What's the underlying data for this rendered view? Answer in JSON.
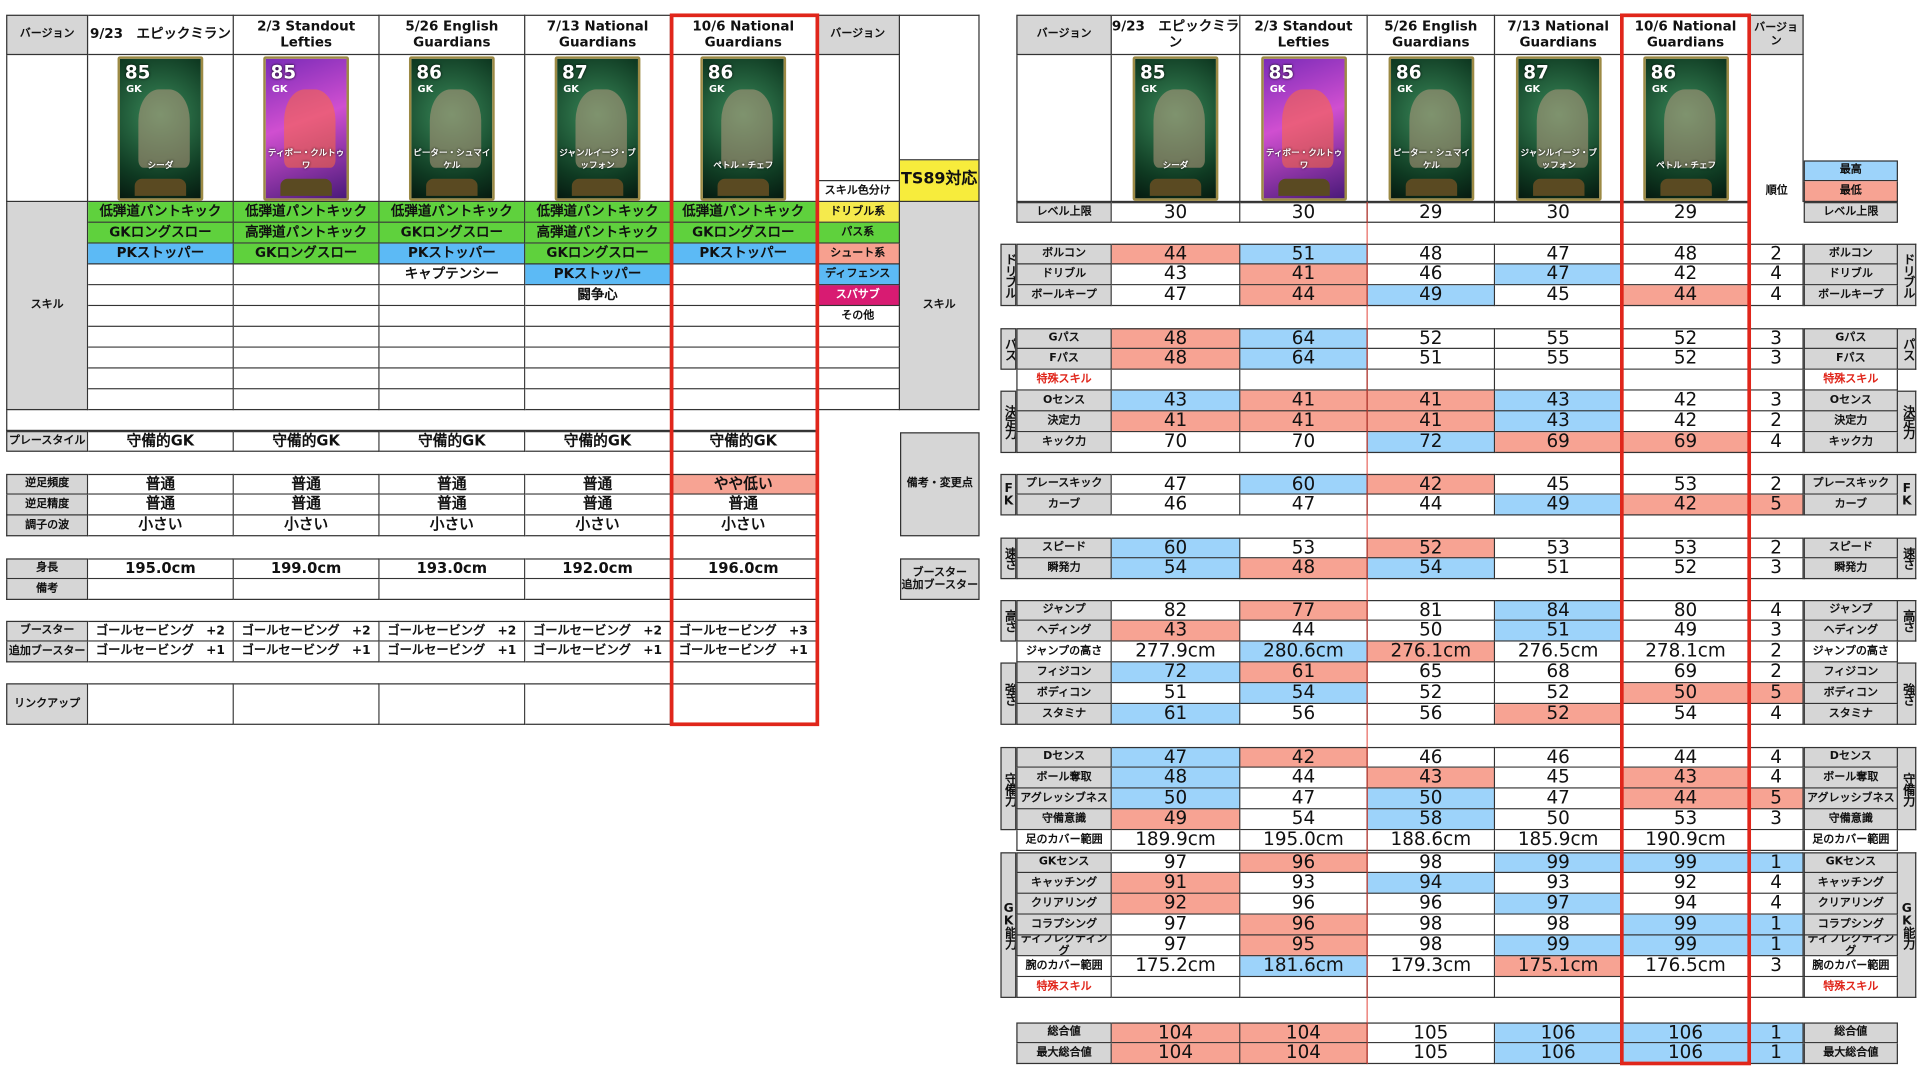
{
  "left": {
    "version_label": "バージョン",
    "version_label_right": "バージョン",
    "versions": [
      "9/23　エピックミラン",
      "2/3 Standout Lefties",
      "5/26 English Guardians",
      "7/13 National Guardians",
      "10/6 National Guardians"
    ],
    "cards": [
      {
        "rating": "85",
        "position": "GK",
        "name": "シーダ",
        "theme": "green"
      },
      {
        "rating": "85",
        "position": "GK",
        "name": "ティボー・クルトゥワ",
        "theme": "purple"
      },
      {
        "rating": "86",
        "position": "GK",
        "name": "ピーター・シュマイケル",
        "theme": "green"
      },
      {
        "rating": "87",
        "position": "GK",
        "name": "ジャンルイージ・ブッフォン",
        "theme": "green"
      },
      {
        "rating": "86",
        "position": "GK",
        "name": "ペトル・チェフ",
        "theme": "green"
      }
    ],
    "skills_label": "スキル",
    "skills_label_right": "スキル",
    "skills": [
      [
        {
          "name": "低弾道パントキック",
          "type": "pass"
        },
        {
          "name": "GKロングスロー",
          "type": "pass"
        },
        {
          "name": "PKストッパー",
          "type": "defense"
        }
      ],
      [
        {
          "name": "低弾道パントキック",
          "type": "pass"
        },
        {
          "name": "高弾道パントキック",
          "type": "pass"
        },
        {
          "name": "GKロングスロー",
          "type": "pass"
        }
      ],
      [
        {
          "name": "低弾道パントキック",
          "type": "pass"
        },
        {
          "name": "GKロングスロー",
          "type": "pass"
        },
        {
          "name": "PKストッパー",
          "type": "defense"
        },
        {
          "name": "キャプテンシー",
          "type": "other"
        }
      ],
      [
        {
          "name": "低弾道パントキック",
          "type": "pass"
        },
        {
          "name": "高弾道パントキック",
          "type": "pass"
        },
        {
          "name": "GKロングスロー",
          "type": "pass"
        },
        {
          "name": "PKストッパー",
          "type": "defense"
        },
        {
          "name": "闘争心",
          "type": "other"
        }
      ],
      [
        {
          "name": "低弾道パントキック",
          "type": "pass"
        },
        {
          "name": "GKロングスロー",
          "type": "pass"
        },
        {
          "name": "PKストッパー",
          "type": "defense"
        }
      ]
    ],
    "skill_legend_title": "スキル色分け",
    "skill_legend": [
      {
        "label": "ドリブル系",
        "type": "dribble",
        "color": "#f5ea4c"
      },
      {
        "label": "パス系",
        "type": "pass",
        "color": "#5fd13d"
      },
      {
        "label": "シュート系",
        "type": "shoot",
        "color": "#f7a08f"
      },
      {
        "label": "ディフェンス",
        "type": "defense",
        "color": "#5cbaf5"
      },
      {
        "label": "スパサブ",
        "type": "supersub",
        "color": "#d81b72"
      },
      {
        "label": "その他",
        "type": "other",
        "color": "#ffffff"
      }
    ],
    "ts89": "TS89対応",
    "remarks_label": "備考・変更点",
    "booster_label_right": "ブースター\n追加ブースター",
    "rows": [
      {
        "label": "プレースタイル",
        "values": [
          "守備的GK",
          "守備的GK",
          "守備的GK",
          "守備的GK",
          "守備的GK"
        ],
        "highlight": [
          "",
          "",
          "",
          "",
          ""
        ]
      },
      {
        "label": "逆足頻度",
        "values": [
          "普通",
          "普通",
          "普通",
          "普通",
          "やや低い"
        ],
        "highlight": [
          "",
          "",
          "",
          "",
          "lo"
        ]
      },
      {
        "label": "逆足精度",
        "values": [
          "普通",
          "普通",
          "普通",
          "普通",
          "普通"
        ],
        "highlight": [
          "",
          "",
          "",
          "",
          ""
        ]
      },
      {
        "label": "調子の波",
        "values": [
          "小さい",
          "小さい",
          "小さい",
          "小さい",
          "小さい"
        ],
        "highlight": [
          "",
          "",
          "",
          "",
          ""
        ]
      },
      {
        "label": "身長",
        "values": [
          "195.0cm",
          "199.0cm",
          "193.0cm",
          "192.0cm",
          "196.0cm"
        ],
        "highlight": [
          "",
          "",
          "",
          "",
          ""
        ]
      },
      {
        "label": "備考",
        "values": [
          "",
          "",
          "",
          "",
          ""
        ],
        "highlight": [
          "",
          "",
          "",
          "",
          ""
        ]
      },
      {
        "label": "ブースター",
        "values": [
          "ゴールセービング　+2",
          "ゴールセービング　+2",
          "ゴールセービング　+2",
          "ゴールセービング　+2",
          "ゴールセービング　+3"
        ],
        "highlight": [
          "",
          "",
          "",
          "",
          ""
        ]
      },
      {
        "label": "追加ブースター",
        "values": [
          "ゴールセービング　+1",
          "ゴールセービング　+1",
          "ゴールセービング　+1",
          "ゴールセービング　+1",
          "ゴールセービング　+1"
        ],
        "highlight": [
          "",
          "",
          "",
          "",
          ""
        ]
      },
      {
        "label": "リンクアップ",
        "values": [
          "",
          "",
          "",
          "",
          ""
        ],
        "highlight": [
          "",
          "",
          "",
          "",
          ""
        ]
      }
    ]
  },
  "stats": {
    "version_label": "バージョン",
    "rank_header": "バージョン",
    "versions": [
      "9/23　エピックミラン",
      "2/3 Standout Lefties",
      "5/26 English Guardians",
      "7/13 National Guardians",
      "10/6 National Guardians"
    ],
    "rank_label": "順位",
    "legend": [
      {
        "label": "最高",
        "color": "#9dd3fa"
      },
      {
        "label": "最低",
        "color": "#f7a393"
      }
    ],
    "colors": {
      "hi": "#9dd3fa",
      "lo": "#f7a393",
      "frame": "#e0261b"
    },
    "rows": [
      {
        "group": "",
        "kind": "normal",
        "label": "レベル上限",
        "values": [
          "30",
          "30",
          "29",
          "30",
          "29"
        ],
        "highlight": [
          "",
          "",
          "",
          "",
          ""
        ],
        "rank": "",
        "rank_hl": ""
      },
      {
        "group": "ドリブル",
        "kind": "normal",
        "label": "ボルコン",
        "values": [
          "44",
          "51",
          "48",
          "47",
          "48"
        ],
        "highlight": [
          "lo",
          "hi",
          "",
          "",
          ""
        ],
        "rank": "2",
        "rank_hl": ""
      },
      {
        "group": "ドリブル",
        "kind": "normal",
        "label": "ドリブル",
        "values": [
          "43",
          "41",
          "46",
          "47",
          "42"
        ],
        "highlight": [
          "",
          "lo",
          "",
          "hi",
          ""
        ],
        "rank": "4",
        "rank_hl": ""
      },
      {
        "group": "ドリブル",
        "kind": "normal",
        "label": "ボールキープ",
        "values": [
          "47",
          "44",
          "49",
          "45",
          "44"
        ],
        "highlight": [
          "",
          "lo",
          "hi",
          "",
          "lo"
        ],
        "rank": "4",
        "rank_hl": ""
      },
      {
        "group": "パス",
        "kind": "normal",
        "label": "Gパス",
        "values": [
          "48",
          "64",
          "52",
          "55",
          "52"
        ],
        "highlight": [
          "lo",
          "hi",
          "",
          "",
          ""
        ],
        "rank": "3",
        "rank_hl": ""
      },
      {
        "group": "パス",
        "kind": "normal",
        "label": "Fパス",
        "values": [
          "48",
          "64",
          "51",
          "55",
          "52"
        ],
        "highlight": [
          "lo",
          "hi",
          "",
          "",
          ""
        ],
        "rank": "3",
        "rank_hl": ""
      },
      {
        "group": "",
        "kind": "special",
        "label": "特殊スキル",
        "values": [
          "",
          "",
          "",
          "",
          ""
        ],
        "highlight": [
          "",
          "",
          "",
          "",
          ""
        ],
        "rank": "",
        "rank_hl": ""
      },
      {
        "group": "決定力",
        "kind": "normal",
        "label": "Oセンス",
        "values": [
          "43",
          "41",
          "41",
          "43",
          "42"
        ],
        "highlight": [
          "hi",
          "lo",
          "lo",
          "hi",
          ""
        ],
        "rank": "3",
        "rank_hl": ""
      },
      {
        "group": "決定力",
        "kind": "normal",
        "label": "決定力",
        "values": [
          "41",
          "41",
          "41",
          "43",
          "42"
        ],
        "highlight": [
          "lo",
          "lo",
          "lo",
          "hi",
          ""
        ],
        "rank": "2",
        "rank_hl": ""
      },
      {
        "group": "決定力",
        "kind": "normal",
        "label": "キック力",
        "values": [
          "70",
          "70",
          "72",
          "69",
          "69"
        ],
        "highlight": [
          "",
          "",
          "hi",
          "lo",
          "lo"
        ],
        "rank": "4",
        "rank_hl": ""
      },
      {
        "group": "FK",
        "kind": "normal",
        "label": "プレースキック",
        "values": [
          "47",
          "60",
          "42",
          "45",
          "53"
        ],
        "highlight": [
          "",
          "hi",
          "lo",
          "",
          ""
        ],
        "rank": "2",
        "rank_hl": ""
      },
      {
        "group": "FK",
        "kind": "normal",
        "label": "カーブ",
        "values": [
          "46",
          "47",
          "44",
          "49",
          "42"
        ],
        "highlight": [
          "",
          "",
          "",
          "hi",
          "lo"
        ],
        "rank": "5",
        "rank_hl": "lo"
      },
      {
        "group": "速さ",
        "kind": "normal",
        "label": "スピード",
        "values": [
          "60",
          "53",
          "52",
          "53",
          "53"
        ],
        "highlight": [
          "hi",
          "",
          "lo",
          "",
          ""
        ],
        "rank": "2",
        "rank_hl": ""
      },
      {
        "group": "速さ",
        "kind": "normal",
        "label": "瞬発力",
        "values": [
          "54",
          "48",
          "54",
          "51",
          "52"
        ],
        "highlight": [
          "hi",
          "lo",
          "hi",
          "",
          ""
        ],
        "rank": "3",
        "rank_hl": ""
      },
      {
        "group": "高さ",
        "kind": "normal",
        "label": "ジャンプ",
        "values": [
          "82",
          "77",
          "81",
          "84",
          "80"
        ],
        "highlight": [
          "",
          "lo",
          "",
          "hi",
          ""
        ],
        "rank": "4",
        "rank_hl": ""
      },
      {
        "group": "高さ",
        "kind": "normal",
        "label": "ヘディング",
        "values": [
          "43",
          "44",
          "50",
          "51",
          "49"
        ],
        "highlight": [
          "lo",
          "",
          "",
          "hi",
          ""
        ],
        "rank": "3",
        "rank_hl": ""
      },
      {
        "group": "",
        "kind": "measure",
        "label": "ジャンプの高さ",
        "values": [
          "277.9cm",
          "280.6cm",
          "276.1cm",
          "276.5cm",
          "278.1cm"
        ],
        "highlight": [
          "",
          "hi",
          "lo",
          "",
          ""
        ],
        "rank": "2",
        "rank_hl": ""
      },
      {
        "group": "強さ",
        "kind": "normal",
        "label": "フィジコン",
        "values": [
          "72",
          "61",
          "65",
          "68",
          "69"
        ],
        "highlight": [
          "hi",
          "lo",
          "",
          "",
          ""
        ],
        "rank": "2",
        "rank_hl": ""
      },
      {
        "group": "強さ",
        "kind": "normal",
        "label": "ボディコン",
        "values": [
          "51",
          "54",
          "52",
          "52",
          "50"
        ],
        "highlight": [
          "",
          "hi",
          "",
          "",
          "lo"
        ],
        "rank": "5",
        "rank_hl": "lo"
      },
      {
        "group": "強さ",
        "kind": "normal",
        "label": "スタミナ",
        "values": [
          "61",
          "56",
          "56",
          "52",
          "54"
        ],
        "highlight": [
          "hi",
          "",
          "",
          "lo",
          ""
        ],
        "rank": "4",
        "rank_hl": ""
      },
      {
        "group": "守備力",
        "kind": "normal",
        "label": "Dセンス",
        "values": [
          "47",
          "42",
          "46",
          "46",
          "44"
        ],
        "highlight": [
          "hi",
          "lo",
          "",
          "",
          ""
        ],
        "rank": "4",
        "rank_hl": ""
      },
      {
        "group": "守備力",
        "kind": "normal",
        "label": "ボール奪取",
        "values": [
          "48",
          "44",
          "43",
          "45",
          "43"
        ],
        "highlight": [
          "hi",
          "",
          "lo",
          "",
          "lo"
        ],
        "rank": "4",
        "rank_hl": ""
      },
      {
        "group": "守備力",
        "kind": "normal",
        "label": "アグレッシブネス",
        "values": [
          "50",
          "47",
          "50",
          "47",
          "44"
        ],
        "highlight": [
          "hi",
          "",
          "hi",
          "",
          "lo"
        ],
        "rank": "5",
        "rank_hl": "lo"
      },
      {
        "group": "守備力",
        "kind": "normal",
        "label": "守備意識",
        "values": [
          "49",
          "54",
          "58",
          "50",
          "53"
        ],
        "highlight": [
          "lo",
          "",
          "hi",
          "",
          ""
        ],
        "rank": "3",
        "rank_hl": ""
      },
      {
        "group": "",
        "kind": "measure",
        "label": "足のカバー範囲",
        "values": [
          "189.9cm",
          "195.0cm",
          "188.6cm",
          "185.9cm",
          "190.9cm"
        ],
        "highlight": [
          "",
          "",
          "",
          "",
          ""
        ],
        "rank": "",
        "rank_hl": ""
      },
      {
        "group": "GK能力",
        "kind": "normal",
        "label": "GKセンス",
        "values": [
          "97",
          "96",
          "98",
          "99",
          "99"
        ],
        "highlight": [
          "",
          "lo",
          "",
          "hi",
          "hi"
        ],
        "rank": "1",
        "rank_hl": "hi"
      },
      {
        "group": "GK能力",
        "kind": "normal",
        "label": "キャッチング",
        "values": [
          "91",
          "93",
          "94",
          "93",
          "92"
        ],
        "highlight": [
          "lo",
          "",
          "hi",
          "",
          ""
        ],
        "rank": "4",
        "rank_hl": ""
      },
      {
        "group": "GK能力",
        "kind": "normal",
        "label": "クリアリング",
        "values": [
          "92",
          "96",
          "96",
          "97",
          "94"
        ],
        "highlight": [
          "lo",
          "",
          "",
          "hi",
          ""
        ],
        "rank": "4",
        "rank_hl": ""
      },
      {
        "group": "GK能力",
        "kind": "normal",
        "label": "コラプシング",
        "values": [
          "97",
          "96",
          "98",
          "98",
          "99"
        ],
        "highlight": [
          "",
          "lo",
          "",
          "",
          "hi"
        ],
        "rank": "1",
        "rank_hl": "hi"
      },
      {
        "group": "GK能力",
        "kind": "normal",
        "label": "ディフレクティング",
        "values": [
          "97",
          "95",
          "98",
          "99",
          "99"
        ],
        "highlight": [
          "",
          "lo",
          "",
          "hi",
          "hi"
        ],
        "rank": "1",
        "rank_hl": "hi"
      },
      {
        "group": "GK能力",
        "kind": "measure",
        "label": "腕のカバー範囲",
        "values": [
          "175.2cm",
          "181.6cm",
          "179.3cm",
          "175.1cm",
          "176.5cm"
        ],
        "highlight": [
          "",
          "hi",
          "",
          "lo",
          ""
        ],
        "rank": "3",
        "rank_hl": ""
      },
      {
        "group": "GK能力",
        "kind": "special",
        "label": "特殊スキル",
        "values": [
          "",
          "",
          "",
          "",
          ""
        ],
        "highlight": [
          "",
          "",
          "",
          "",
          ""
        ],
        "rank": "",
        "rank_hl": ""
      },
      {
        "group": "",
        "kind": "normal",
        "label": "総合値",
        "values": [
          "104",
          "104",
          "105",
          "106",
          "106"
        ],
        "highlight": [
          "lo",
          "lo",
          "",
          "hi",
          "hi"
        ],
        "rank": "1",
        "rank_hl": "hi"
      },
      {
        "group": "",
        "kind": "normal",
        "label": "最大総合値",
        "values": [
          "104",
          "104",
          "105",
          "106",
          "106"
        ],
        "highlight": [
          "lo",
          "lo",
          "",
          "hi",
          "hi"
        ],
        "rank": "1",
        "rank_hl": "hi"
      }
    ]
  }
}
